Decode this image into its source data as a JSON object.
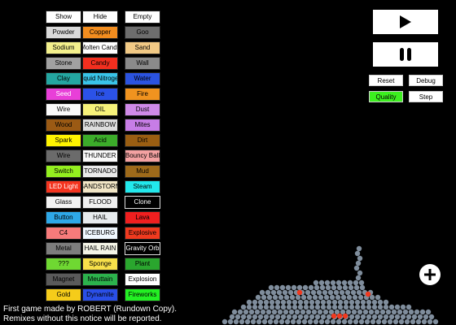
{
  "elements": [
    [
      {
        "label": "Show",
        "bg": "#ffffff",
        "fg": "#000000"
      },
      {
        "label": "Powder",
        "bg": "#d9d9d9",
        "fg": "#000000"
      },
      {
        "label": "Sodium",
        "bg": "#f3f08c",
        "fg": "#000000"
      },
      {
        "label": "Stone",
        "bg": "#a1a1a1",
        "fg": "#000000"
      },
      {
        "label": "Clay",
        "bg": "#24a6a1",
        "fg": "#000000"
      },
      {
        "label": "Seed",
        "bg": "#e83fd8",
        "fg": "#ffffff"
      },
      {
        "label": "Wire",
        "bg": "#fafafa",
        "fg": "#000000"
      },
      {
        "label": "Wood",
        "bg": "#9b5a14",
        "fg": "#000000"
      },
      {
        "label": "Spark",
        "bg": "#fff400",
        "fg": "#000000"
      },
      {
        "label": "Wire",
        "bg": "#6b6b6b",
        "fg": "#000000"
      },
      {
        "label": "Switch",
        "bg": "#94ef1f",
        "fg": "#000000"
      },
      {
        "label": "LED Light",
        "bg": "#f4341f",
        "fg": "#ffffff"
      },
      {
        "label": "Glass",
        "bg": "#f2f2f2",
        "fg": "#000000"
      },
      {
        "label": "Button",
        "bg": "#2ea8e8",
        "fg": "#000000"
      },
      {
        "label": "C4",
        "bg": "#f77b7b",
        "fg": "#000000"
      },
      {
        "label": "Metal",
        "bg": "#7d7d7d",
        "fg": "#000000"
      },
      {
        "label": "???",
        "bg": "#6fd832",
        "fg": "#000000"
      },
      {
        "label": "Magnet",
        "bg": "#5a5a5a",
        "fg": "#000000"
      },
      {
        "label": "Gold",
        "bg": "#f5cc1a",
        "fg": "#000000"
      }
    ],
    [
      {
        "label": "Hide",
        "bg": "#ffffff",
        "fg": "#000000"
      },
      {
        "label": "Copper",
        "bg": "#f28d1f",
        "fg": "#000000"
      },
      {
        "label": "Molten Candy",
        "bg": "#ffffff",
        "fg": "#000000"
      },
      {
        "label": "Candy",
        "bg": "#f22f1f",
        "fg": "#000000"
      },
      {
        "label": "Liquid Nitrogen",
        "bg": "#39c4e8",
        "fg": "#000000"
      },
      {
        "label": "Ice",
        "bg": "#2b52e8",
        "fg": "#000000"
      },
      {
        "label": "OIL",
        "bg": "#f6f27a",
        "fg": "#000000"
      },
      {
        "label": "RAINBOW",
        "bg": "#dddddd",
        "fg": "#000000"
      },
      {
        "label": "Acid",
        "bg": "#3cac2a",
        "fg": "#000000"
      },
      {
        "label": "THUNDER",
        "bg": "#f9f9f9",
        "fg": "#000000"
      },
      {
        "label": "TORNADO",
        "bg": "#eaeaea",
        "fg": "#000000"
      },
      {
        "label": "SANDSTORM",
        "bg": "#f2e6c6",
        "fg": "#000000"
      },
      {
        "label": "FLOOD",
        "bg": "#f0f0f0",
        "fg": "#000000"
      },
      {
        "label": "HAIL",
        "bg": "#e7ebee",
        "fg": "#000000"
      },
      {
        "label": "ICEBURG",
        "bg": "#f0f8ff",
        "fg": "#000000"
      },
      {
        "label": "HAIL RAIN",
        "bg": "#f4f4e6",
        "fg": "#000000"
      },
      {
        "label": "Sponge",
        "bg": "#f7e04a",
        "fg": "#000000"
      },
      {
        "label": "Meuttain",
        "bg": "#2cb24c",
        "fg": "#000000"
      },
      {
        "label": "Dynamite",
        "bg": "#2a4fe8",
        "fg": "#000000"
      }
    ],
    [
      {
        "label": "Empty",
        "bg": "#ffffff",
        "fg": "#000000"
      },
      {
        "label": "Goo",
        "bg": "#6d6d6d",
        "fg": "#000000"
      },
      {
        "label": "Sand",
        "bg": "#f1c985",
        "fg": "#000000"
      },
      {
        "label": "Wall",
        "bg": "#8a8a8a",
        "fg": "#000000"
      },
      {
        "label": "Water",
        "bg": "#2b53e0",
        "fg": "#000000"
      },
      {
        "label": "Fire",
        "bg": "#f0931f",
        "fg": "#000000"
      },
      {
        "label": "Dust",
        "bg": "#cf8ae8",
        "fg": "#000000"
      },
      {
        "label": "Mites",
        "bg": "#c77de6",
        "fg": "#000000"
      },
      {
        "label": "Dirt",
        "bg": "#9a5e12",
        "fg": "#000000"
      },
      {
        "label": "Bouncy Ball",
        "bg": "#f4a2a2",
        "fg": "#000000"
      },
      {
        "label": "Mud",
        "bg": "#9e6a1a",
        "fg": "#000000"
      },
      {
        "label": "Steam",
        "bg": "#22e8ec",
        "fg": "#000000"
      },
      {
        "label": "Clone",
        "bg": "#000000",
        "fg": "#ffffff"
      },
      {
        "label": "Lava",
        "bg": "#f01f1f",
        "fg": "#000000"
      },
      {
        "label": "Explosive",
        "bg": "#f03a1f",
        "fg": "#000000"
      },
      {
        "label": "Gravity Orb",
        "bg": "#000000",
        "fg": "#ffffff"
      },
      {
        "label": "Plant",
        "bg": "#2aa62e",
        "fg": "#000000"
      },
      {
        "label": "Explosion",
        "bg": "#ffffff",
        "fg": "#000000"
      },
      {
        "label": "Fireworks",
        "bg": "#23f023",
        "fg": "#000000"
      }
    ]
  ],
  "controls": {
    "reset": "Reset",
    "debug": "Debug",
    "quality": "Quality",
    "step": "Step",
    "quality_color": "#3cf01f"
  },
  "credits": {
    "line1": "First game made by ROBERT (Rundown Copy).",
    "line2": "Remixes without this notice will be reported."
  },
  "icons": {
    "play": "play-icon",
    "pause": "pause-icon",
    "add": "plus-icon"
  },
  "particle_colors": {
    "grey": "#7f8d9c",
    "red": "#f0391f"
  }
}
